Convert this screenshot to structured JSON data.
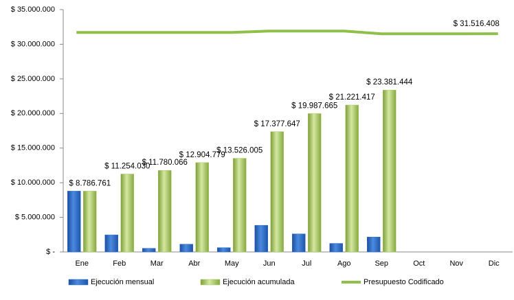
{
  "chart_data": {
    "type": "bar",
    "categories": [
      "Ene",
      "Feb",
      "Mar",
      "Abr",
      "May",
      "Jun",
      "Jul",
      "Ago",
      "Sep",
      "Oct",
      "Nov",
      "Dic"
    ],
    "ylim": [
      0,
      35000000
    ],
    "yticks": [
      {
        "value": 0,
        "label": "$ -"
      },
      {
        "value": 5000000,
        "label": "$ 5.000.000"
      },
      {
        "value": 10000000,
        "label": "$ 10.000.000"
      },
      {
        "value": 15000000,
        "label": "$ 15.000.000"
      },
      {
        "value": 20000000,
        "label": "$ 20.000.000"
      },
      {
        "value": 25000000,
        "label": "$ 25.000.000"
      },
      {
        "value": 30000000,
        "label": "$ 30.000.000"
      },
      {
        "value": 35000000,
        "label": "$ 35.000.000"
      }
    ],
    "grid": false,
    "legend": "bottom",
    "series": [
      {
        "name": "Ejecución mensual",
        "type": "bar",
        "color": "#2e6fd0",
        "values": [
          8786761,
          2467269,
          526036,
          1124713,
          621226,
          3851642,
          2610018,
          1233752,
          2160027,
          null,
          null,
          null
        ]
      },
      {
        "name": "Ejecución acumulada",
        "type": "bar",
        "color": "#a8cc5e",
        "values": [
          8786761,
          11254030,
          11780066,
          12904779,
          13526005,
          17377647,
          19987665,
          21221417,
          23381444,
          null,
          null,
          null
        ],
        "value_labels": [
          "$ 8.786.761",
          "$ 11.254.030",
          "$ 11.780.066",
          "$ 12.904.779",
          "$ 13.526.005",
          "$ 17.377.647",
          "$ 19.987.665",
          "$ 21.221.417",
          "$ 23.381.444",
          null,
          null,
          null
        ]
      },
      {
        "name": "Presupuesto Codificado",
        "type": "line",
        "color": "#8fc04a",
        "values": [
          31700000,
          31700000,
          31700000,
          31700000,
          31700000,
          31900000,
          31900000,
          31900000,
          31500000,
          31500000,
          31500000,
          31516408
        ],
        "value_labels": [
          null,
          null,
          null,
          null,
          null,
          null,
          null,
          null,
          null,
          null,
          null,
          "$ 31.516.408"
        ]
      }
    ]
  }
}
